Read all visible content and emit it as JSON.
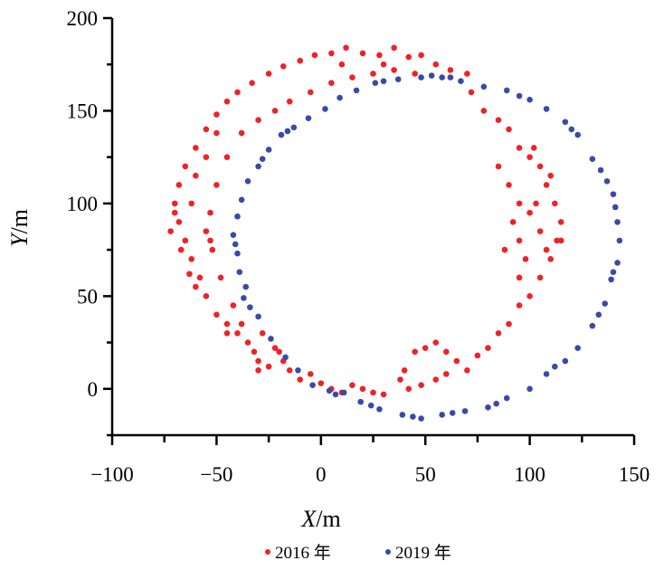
{
  "chart_data": {
    "type": "scatter",
    "title": "",
    "xlabel": {
      "var": "X",
      "unit": "/m"
    },
    "ylabel": {
      "var": "Y",
      "unit": "/m"
    },
    "xlim": [
      -100,
      150
    ],
    "ylim": [
      -25,
      200
    ],
    "xticks": [
      -100,
      -50,
      0,
      50,
      100,
      150
    ],
    "xtick_labels": [
      "−100",
      "−50",
      "0",
      "50",
      "100",
      "150"
    ],
    "yticks": [
      0,
      50,
      100,
      150,
      200
    ],
    "ytick_labels": [
      "0",
      "50",
      "100",
      "150",
      "200"
    ],
    "grid": false,
    "legend": "bottom",
    "series": [
      {
        "name": "2016 年",
        "color": "#ee2227",
        "points": [
          [
            -30,
            15
          ],
          [
            -25,
            12
          ],
          [
            -20,
            20
          ],
          [
            -15,
            10
          ],
          [
            -10,
            5
          ],
          [
            -5,
            8
          ],
          [
            0,
            3
          ],
          [
            5,
            0
          ],
          [
            10,
            -2
          ],
          [
            15,
            2
          ],
          [
            20,
            0
          ],
          [
            25,
            -2
          ],
          [
            30,
            -3
          ],
          [
            -35,
            25
          ],
          [
            -40,
            30
          ],
          [
            -45,
            35
          ],
          [
            -50,
            40
          ],
          [
            -55,
            50
          ],
          [
            -58,
            60
          ],
          [
            -62,
            70
          ],
          [
            -65,
            80
          ],
          [
            -68,
            90
          ],
          [
            -70,
            100
          ],
          [
            -68,
            110
          ],
          [
            -65,
            120
          ],
          [
            -60,
            130
          ],
          [
            -55,
            140
          ],
          [
            -50,
            148
          ],
          [
            -45,
            155
          ],
          [
            -40,
            160
          ],
          [
            -33,
            165
          ],
          [
            -25,
            170
          ],
          [
            -18,
            174
          ],
          [
            -10,
            177
          ],
          [
            -3,
            180
          ],
          [
            5,
            181
          ],
          [
            12,
            184
          ],
          [
            20,
            181
          ],
          [
            28,
            180
          ],
          [
            35,
            184
          ],
          [
            42,
            179
          ],
          [
            48,
            180
          ],
          [
            55,
            175
          ],
          [
            62,
            172
          ],
          [
            70,
            170
          ],
          [
            -48,
            60
          ],
          [
            -52,
            75
          ],
          [
            -55,
            85
          ],
          [
            -53,
            95
          ],
          [
            -50,
            110
          ],
          [
            -45,
            125
          ],
          [
            -38,
            138
          ],
          [
            -30,
            145
          ],
          [
            -22,
            150
          ],
          [
            -15,
            155
          ],
          [
            -5,
            160
          ],
          [
            5,
            165
          ],
          [
            15,
            168
          ],
          [
            25,
            170
          ],
          [
            35,
            172
          ],
          [
            45,
            170
          ],
          [
            -42,
            45
          ],
          [
            -38,
            35
          ],
          [
            -28,
            30
          ],
          [
            -22,
            22
          ],
          [
            -32,
            20
          ],
          [
            72,
            160
          ],
          [
            78,
            150
          ],
          [
            85,
            145
          ],
          [
            90,
            140
          ],
          [
            95,
            130
          ],
          [
            100,
            125
          ],
          [
            105,
            120
          ],
          [
            108,
            110
          ],
          [
            112,
            100
          ],
          [
            115,
            90
          ],
          [
            113,
            80
          ],
          [
            110,
            70
          ],
          [
            105,
            60
          ],
          [
            100,
            50
          ],
          [
            95,
            45
          ],
          [
            90,
            35
          ],
          [
            85,
            30
          ],
          [
            80,
            22
          ],
          [
            75,
            18
          ],
          [
            70,
            10
          ],
          [
            65,
            15
          ],
          [
            60,
            20
          ],
          [
            55,
            25
          ],
          [
            50,
            22
          ],
          [
            45,
            20
          ],
          [
            40,
            10
          ],
          [
            38,
            5
          ],
          [
            42,
            0
          ],
          [
            48,
            2
          ],
          [
            55,
            5
          ],
          [
            60,
            8
          ],
          [
            85,
            120
          ],
          [
            90,
            110
          ],
          [
            95,
            100
          ],
          [
            92,
            90
          ],
          [
            95,
            80
          ],
          [
            98,
            70
          ],
          [
            100,
            95
          ],
          [
            105,
            85
          ],
          [
            103,
            100
          ],
          [
            108,
            75
          ],
          [
            88,
            75
          ],
          [
            95,
            60
          ],
          [
            -72,
            85
          ],
          [
            -70,
            95
          ],
          [
            -62,
            100
          ],
          [
            -60,
            115
          ],
          [
            -55,
            125
          ],
          [
            -50,
            138
          ],
          [
            30,
            175
          ],
          [
            10,
            175
          ],
          [
            -67,
            75
          ],
          [
            -63,
            62
          ],
          [
            -60,
            55
          ],
          [
            -53,
            80
          ],
          [
            -45,
            30
          ],
          [
            -30,
            10
          ],
          [
            -18,
            15
          ],
          [
            110,
            115
          ],
          [
            115,
            80
          ],
          [
            102,
            130
          ]
        ]
      },
      {
        "name": "2019 年",
        "color": "#3a4aa8",
        "points": [
          [
            -4,
            2
          ],
          [
            -11,
            10
          ],
          [
            -17,
            17
          ],
          [
            -24,
            27
          ],
          [
            -30,
            39
          ],
          [
            -37,
            49
          ],
          [
            -39,
            63
          ],
          [
            -40,
            73
          ],
          [
            -42,
            83
          ],
          [
            -40,
            93
          ],
          [
            -38,
            102
          ],
          [
            -35,
            112
          ],
          [
            -30,
            120
          ],
          [
            -25,
            129
          ],
          [
            -19,
            137
          ],
          [
            -13,
            141
          ],
          [
            -6,
            146
          ],
          [
            2,
            151
          ],
          [
            9,
            157
          ],
          [
            17,
            161
          ],
          [
            26,
            165
          ],
          [
            37,
            167
          ],
          [
            48,
            168
          ],
          [
            58,
            168
          ],
          [
            67,
            166
          ],
          [
            78,
            163
          ],
          [
            89,
            161
          ],
          [
            100,
            156
          ],
          [
            108,
            151
          ],
          [
            117,
            144
          ],
          [
            123,
            137
          ],
          [
            130,
            124
          ],
          [
            137,
            112
          ],
          [
            140,
            105
          ],
          [
            142,
            90
          ],
          [
            143,
            80
          ],
          [
            142,
            68
          ],
          [
            139,
            59
          ],
          [
            136,
            46
          ],
          [
            130,
            34
          ],
          [
            123,
            22
          ],
          [
            117,
            15
          ],
          [
            108,
            8
          ],
          [
            100,
            0
          ],
          [
            89,
            -5
          ],
          [
            80,
            -10
          ],
          [
            69,
            -12
          ],
          [
            58,
            -14
          ],
          [
            48,
            -16
          ],
          [
            39,
            -14
          ],
          [
            28,
            -11
          ],
          [
            19,
            -7
          ],
          [
            11,
            -2
          ],
          [
            4,
            -1
          ],
          [
            -34,
            44
          ],
          [
            -36,
            55
          ],
          [
            -41,
            78
          ],
          [
            -28,
            124
          ],
          [
            -16,
            139
          ],
          [
            30,
            166
          ],
          [
            53,
            169
          ],
          [
            62,
            168
          ],
          [
            95,
            158
          ],
          [
            120,
            140
          ],
          [
            134,
            118
          ],
          [
            141,
            98
          ],
          [
            140,
            63
          ],
          [
            133,
            40
          ],
          [
            112,
            12
          ],
          [
            84,
            -8
          ],
          [
            63,
            -13
          ],
          [
            44,
            -15
          ],
          [
            24,
            -9
          ],
          [
            7,
            -3
          ]
        ]
      }
    ]
  }
}
